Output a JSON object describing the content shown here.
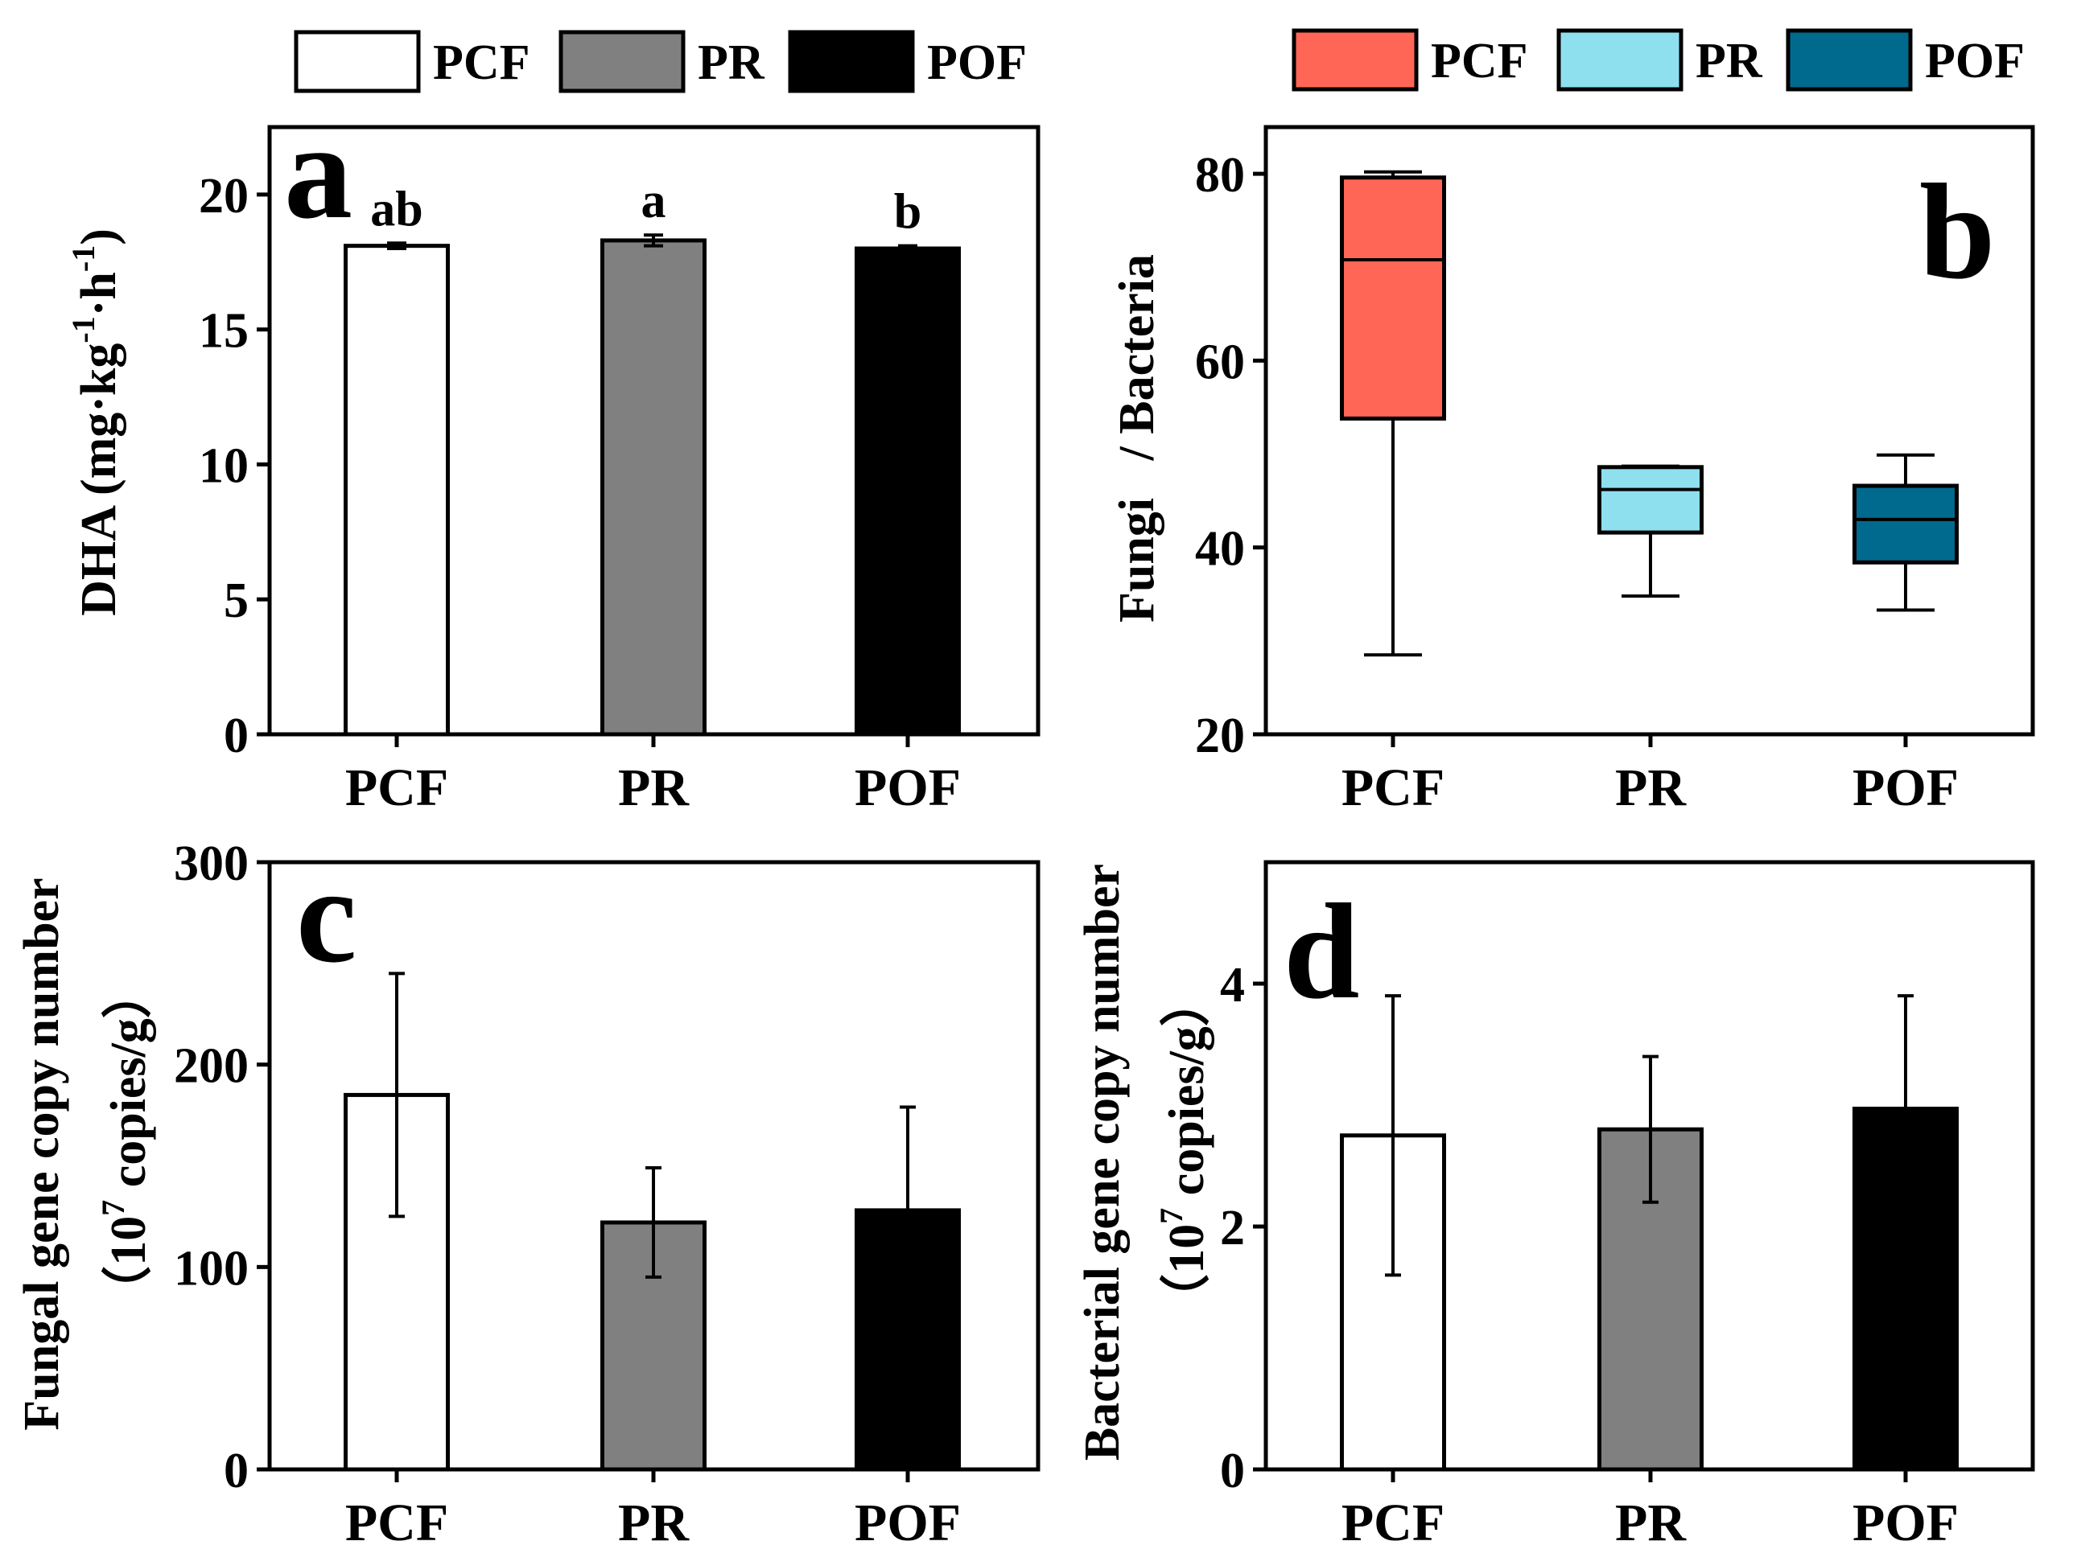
{
  "legend_left": {
    "items": [
      {
        "label": "PCF",
        "fill": "#ffffff"
      },
      {
        "label": "PR",
        "fill": "#808080"
      },
      {
        "label": "POF",
        "fill": "#000000"
      }
    ]
  },
  "legend_right": {
    "items": [
      {
        "label": "PCF",
        "fill": "#ff6655"
      },
      {
        "label": "PR",
        "fill": "#8fe0ef"
      },
      {
        "label": "POF",
        "fill": "#006a8e"
      }
    ]
  },
  "chart_data": [
    {
      "panel": "a",
      "type": "bar",
      "categories": [
        "PCF",
        "PR",
        "POF"
      ],
      "values": [
        18.1,
        18.3,
        18.0
      ],
      "errors": [
        0.1,
        0.2,
        0.1
      ],
      "significance": [
        "ab",
        "a",
        "b"
      ],
      "colors": [
        "#ffffff",
        "#808080",
        "#000000"
      ],
      "ylabel_main": "DHA (mg·kg",
      "ylabel_sup1": "-1",
      "ylabel_mid": "·h",
      "ylabel_sup2": "-1",
      "ylabel_end": ")",
      "ylim": [
        0,
        22.5
      ],
      "yticks": [
        0,
        5,
        10,
        15,
        20
      ],
      "ytick_labels": [
        "0",
        "5",
        "10",
        "15",
        "20"
      ]
    },
    {
      "panel": "b",
      "type": "box",
      "categories": [
        "PCF",
        "PR",
        "POF"
      ],
      "boxes": [
        {
          "min": 28.5,
          "q1": 53.8,
          "median": 70.8,
          "q3": 79.6,
          "max": 80.2
        },
        {
          "min": 34.8,
          "q1": 41.6,
          "median": 46.2,
          "q3": 48.6,
          "max": 48.7
        },
        {
          "min": 33.3,
          "q1": 38.4,
          "median": 43.0,
          "q3": 46.6,
          "max": 49.9
        }
      ],
      "colors": [
        "#ff6655",
        "#8fe0ef",
        "#006a8e"
      ],
      "ylabel": "Fungi   / Bacteria",
      "ylim": [
        20,
        85
      ],
      "yticks": [
        20,
        40,
        60,
        80
      ],
      "ytick_labels": [
        "20",
        "40",
        "60",
        "80"
      ]
    },
    {
      "panel": "c",
      "type": "bar",
      "categories": [
        "PCF",
        "PR",
        "POF"
      ],
      "values": [
        185,
        122,
        128
      ],
      "errors": [
        60,
        27,
        51
      ],
      "colors": [
        "#ffffff",
        "#808080",
        "#000000"
      ],
      "ylabel_line1": "Fungal gene copy number",
      "ylabel_line2_pre": "（10",
      "ylabel_line2_sup": "7",
      "ylabel_line2_post": " copies/g）",
      "ylim": [
        0,
        300
      ],
      "yticks": [
        0,
        100,
        200,
        300
      ],
      "ytick_labels": [
        "0",
        "100",
        "200",
        "300"
      ]
    },
    {
      "panel": "d",
      "type": "bar",
      "categories": [
        "PCF",
        "PR",
        "POF"
      ],
      "values": [
        2.75,
        2.8,
        2.97
      ],
      "errors": [
        1.15,
        0.6,
        0.93
      ],
      "colors": [
        "#ffffff",
        "#808080",
        "#000000"
      ],
      "ylabel_line1": "Bacterial gene copy number",
      "ylabel_line2_pre": "（10",
      "ylabel_line2_sup": "7",
      "ylabel_line2_post": " copies/g）",
      "ylim": [
        0,
        5
      ],
      "yticks": [
        0,
        2,
        4
      ],
      "ytick_labels": [
        "0",
        "2",
        "4"
      ]
    }
  ]
}
